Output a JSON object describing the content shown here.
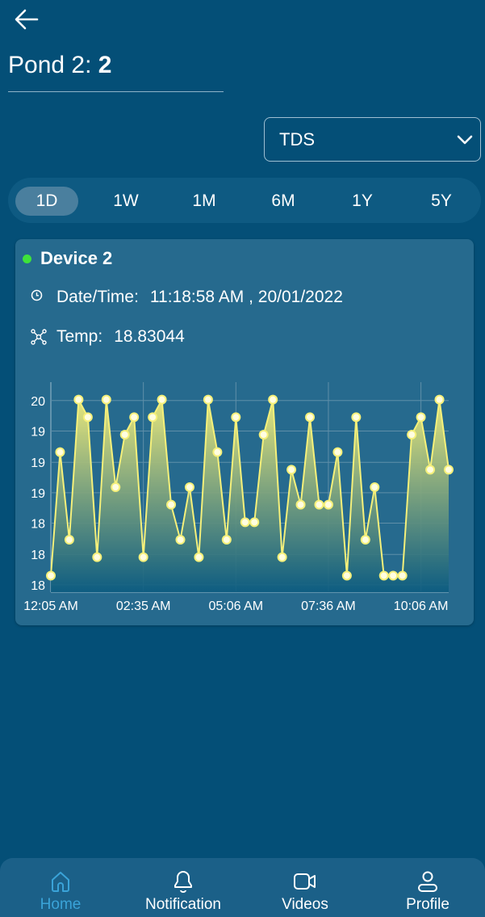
{
  "header": {
    "back_icon": "arrow-left-icon",
    "title_prefix": "Pond 2: ",
    "title_value": "2"
  },
  "dropdown": {
    "selected": "TDS",
    "icon": "chevron-down-icon"
  },
  "range_tabs": {
    "items": [
      "1D",
      "1W",
      "1M",
      "6M",
      "1Y",
      "5Y"
    ],
    "active": "1D"
  },
  "device_card": {
    "name": "Device 2",
    "status_color": "#3ee23a",
    "datetime_label": "Date/Time:",
    "datetime_value": "11:18:58 AM , 20/01/2022",
    "temp_label": "Temp:",
    "temp_value": "18.83044"
  },
  "chart_data": {
    "type": "area",
    "line_color": "#f5f07a",
    "x_tick_labels": [
      "12:05 AM",
      "02:35 AM",
      "05:06 AM",
      "07:36 AM",
      "10:06 AM"
    ],
    "x_tick_index": [
      0,
      10,
      20,
      30,
      40
    ],
    "y_ticks": [
      17.8,
      18.13,
      18.47,
      18.8,
      19.13,
      19.47,
      19.8
    ],
    "y_tick_labels": [
      "18",
      "18",
      "18",
      "19",
      "19",
      "19",
      "20"
    ],
    "ylim": [
      17.72,
      20.0
    ],
    "grid": true,
    "values": [
      17.9,
      19.24,
      18.29,
      19.81,
      19.62,
      18.1,
      19.81,
      18.86,
      19.43,
      19.62,
      18.1,
      19.62,
      19.81,
      18.67,
      18.29,
      18.86,
      18.1,
      19.81,
      19.24,
      18.29,
      19.62,
      18.48,
      18.48,
      19.43,
      19.81,
      18.1,
      19.05,
      18.67,
      19.62,
      18.67,
      18.67,
      19.24,
      17.9,
      19.62,
      18.29,
      18.86,
      17.9,
      17.9,
      17.9,
      19.43,
      19.62,
      19.05,
      19.81,
      19.05
    ]
  },
  "bottom_nav": {
    "items": [
      {
        "label": "Home",
        "icon": "home-icon",
        "active": true
      },
      {
        "label": "Notification",
        "icon": "bell-icon",
        "active": false
      },
      {
        "label": "Videos",
        "icon": "video-camera-icon",
        "active": false
      },
      {
        "label": "Profile",
        "icon": "user-icon",
        "active": false
      }
    ],
    "active_color": "#3aa3d8"
  }
}
